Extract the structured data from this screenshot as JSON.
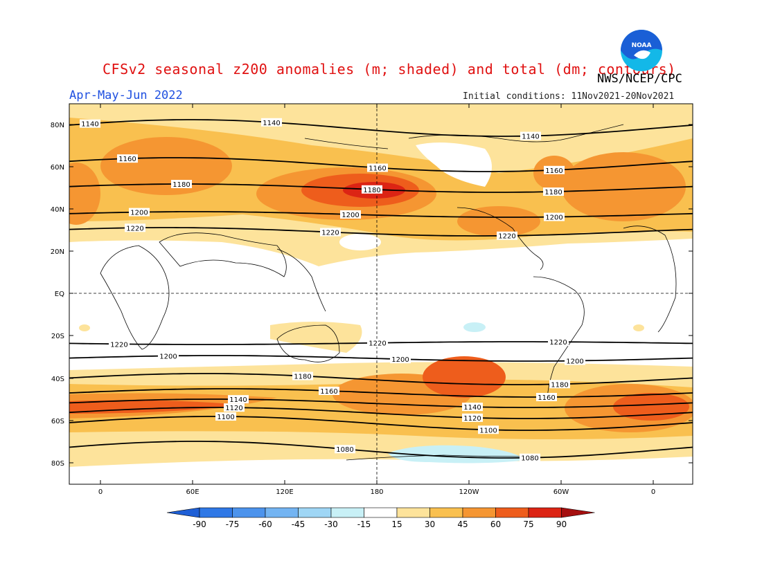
{
  "title": "CFSv2 seasonal z200 anomalies (m; shaded) and total (dm; contours)",
  "agency": "NWS/NCEP/CPC",
  "season": "Apr-May-Jun 2022",
  "initial_conditions": "Initial conditions: 11Nov2021-20Nov2021",
  "logo": {
    "text": "NOAA",
    "colors": [
      "#1a5fd6",
      "#13b8e8"
    ]
  },
  "lat_labels": [
    "80N",
    "60N",
    "40N",
    "20N",
    "EQ",
    "20S",
    "40S",
    "60S",
    "80S"
  ],
  "lon_labels": [
    "0",
    "60E",
    "120E",
    "180",
    "120W",
    "60W",
    "0"
  ],
  "colorbar": {
    "labels": [
      "-90",
      "-75",
      "-60",
      "-45",
      "-30",
      "-15",
      "15",
      "30",
      "45",
      "60",
      "75",
      "90"
    ],
    "colors": [
      "#1e5fd6",
      "#2f78e6",
      "#4c93ec",
      "#73b4f2",
      "#9fd6f5",
      "#c8f0f6",
      "#ffffff",
      "#fde39b",
      "#f9c04f",
      "#f59632",
      "#ee5d1c",
      "#dc2414",
      "#a50f0f"
    ]
  },
  "contour_labels": [
    "1140",
    "1160",
    "1180",
    "1200",
    "1220",
    "1100",
    "1120",
    "1080"
  ]
}
